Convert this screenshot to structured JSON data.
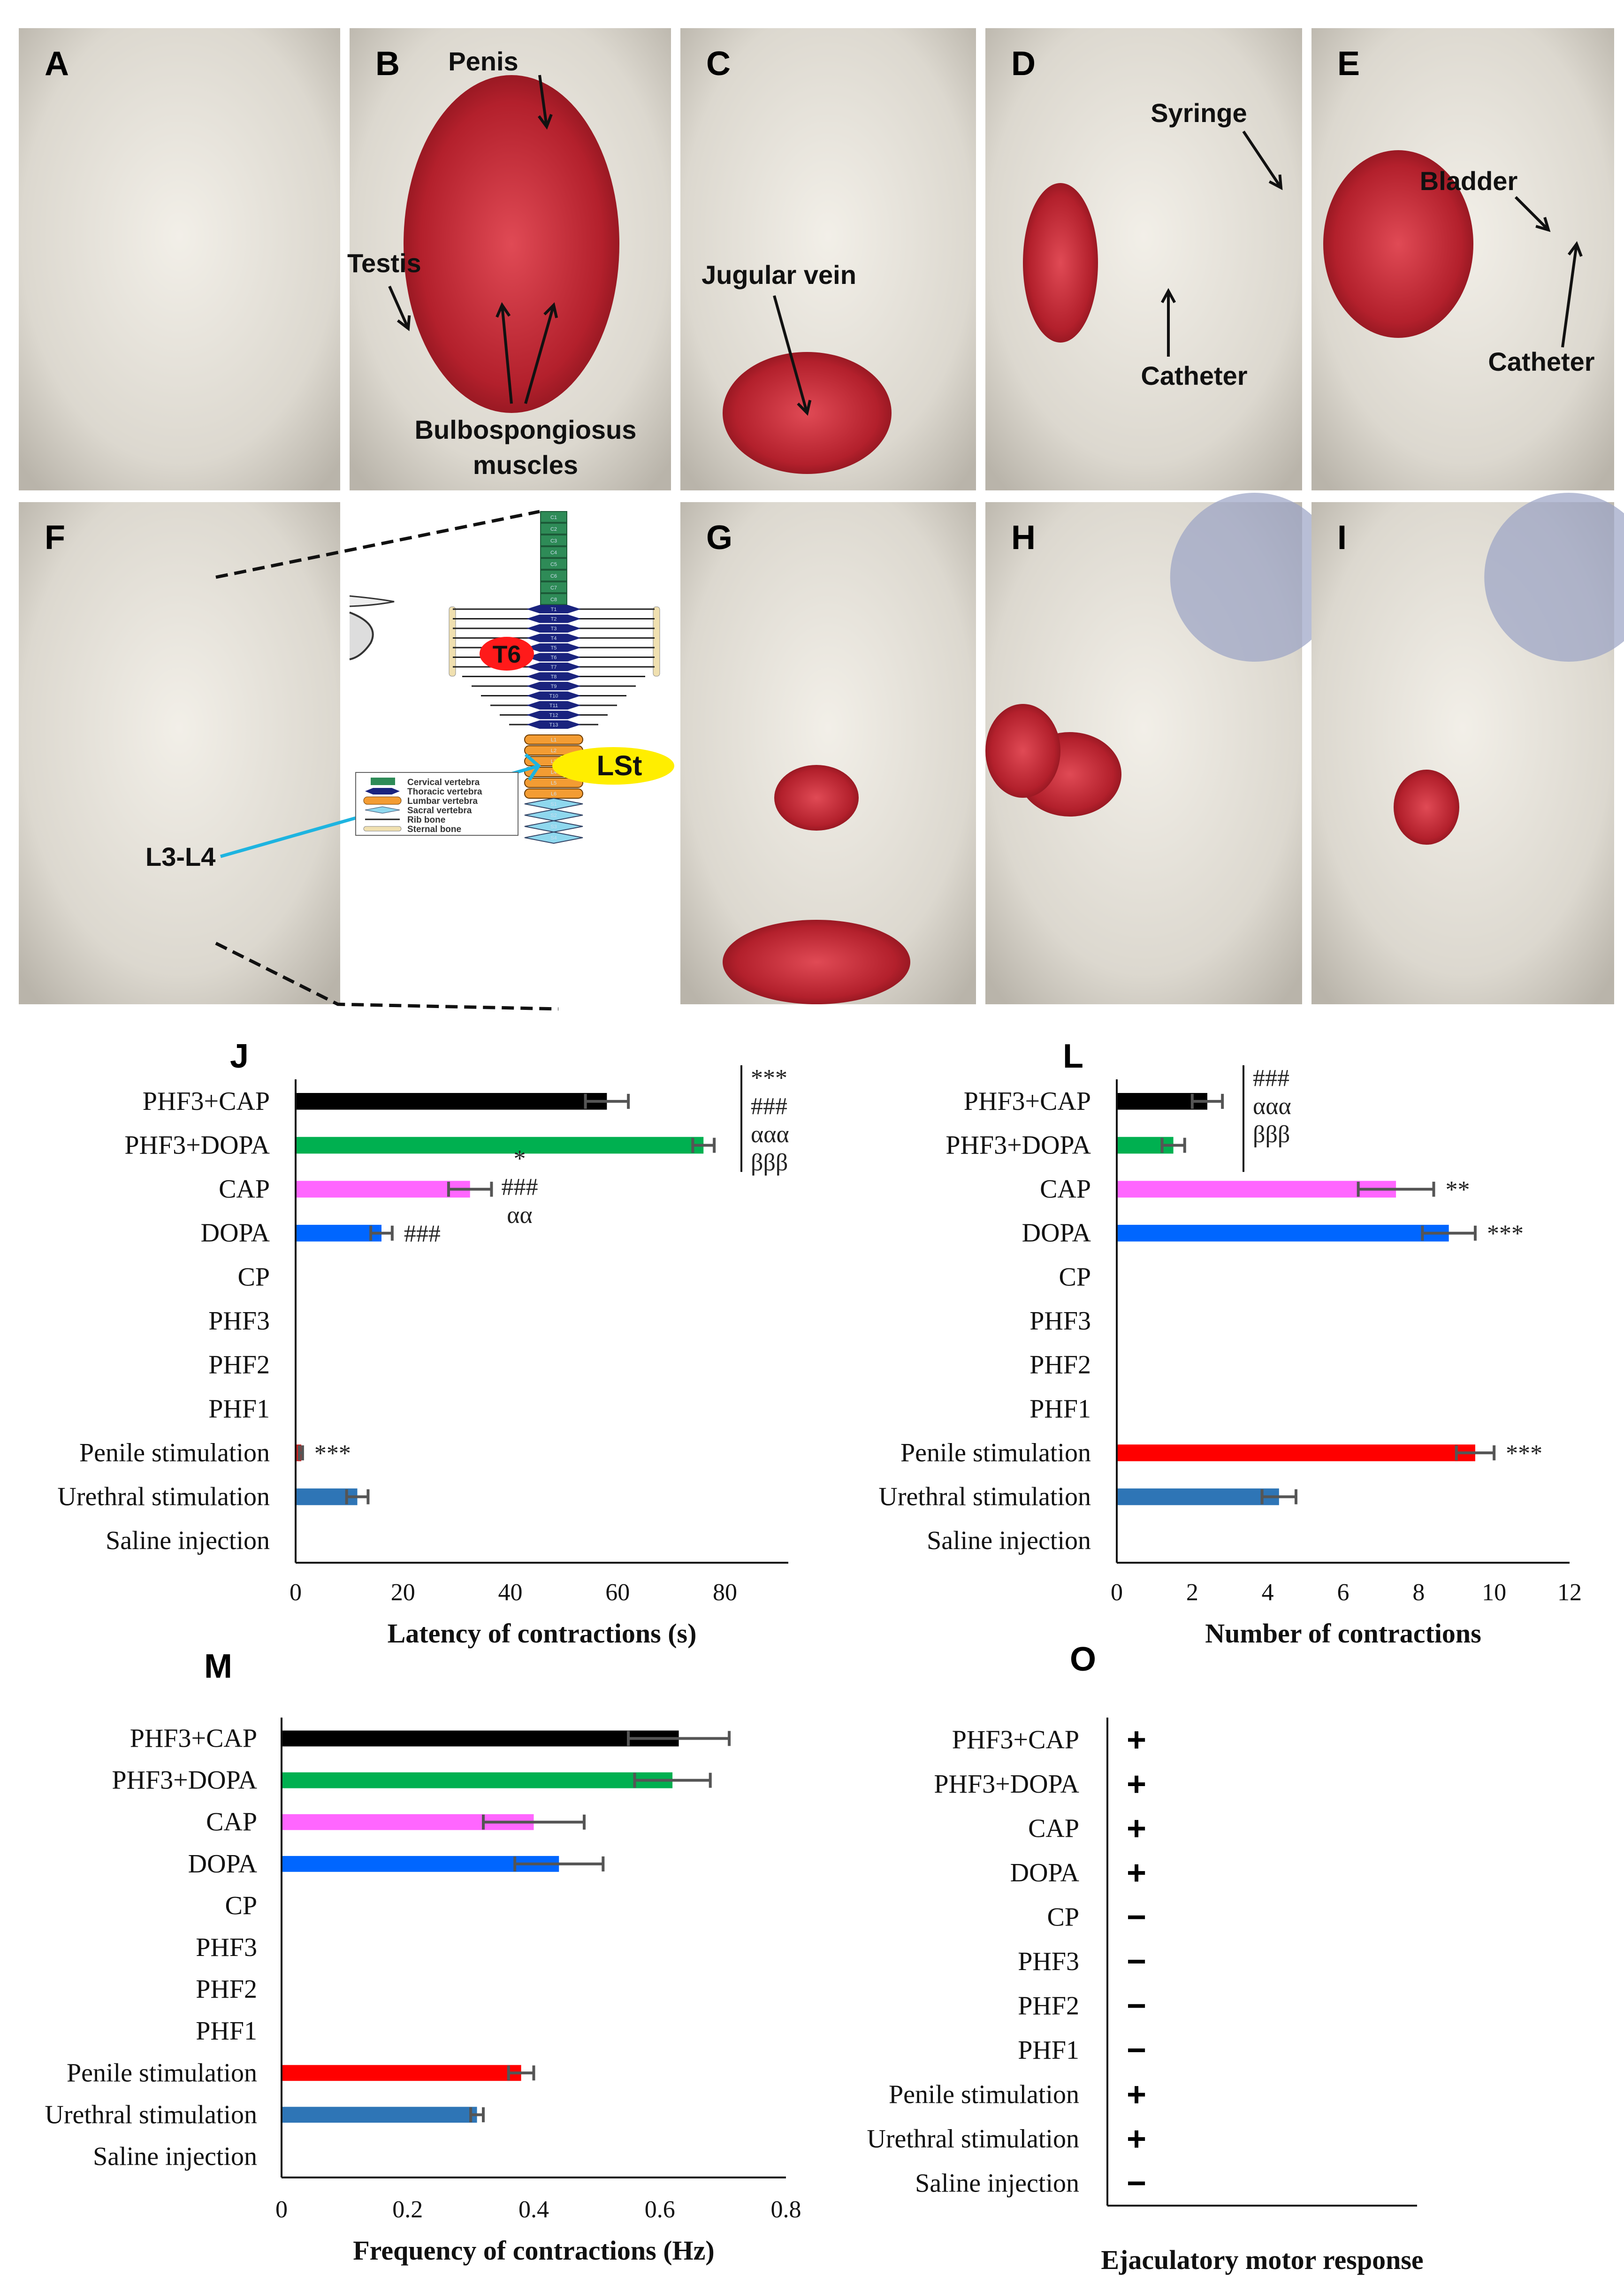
{
  "photo_panels": [
    {
      "id": "A",
      "annotations": []
    },
    {
      "id": "B",
      "annotations": [
        "Penis",
        "Testis",
        "Bulbospongiosus",
        "muscles"
      ]
    },
    {
      "id": "C",
      "annotations": [
        "Jugular vein"
      ]
    },
    {
      "id": "D",
      "annotations": [
        "Syringe",
        "Catheter"
      ]
    },
    {
      "id": "E",
      "annotations": [
        "Bladder",
        "Catheter"
      ]
    },
    {
      "id": "F",
      "annotations": [
        "L3-L4"
      ]
    },
    {
      "id": "G",
      "annotations": []
    },
    {
      "id": "H",
      "annotations": []
    },
    {
      "id": "I",
      "annotations": []
    }
  ],
  "spine_diagram": {
    "cervical": [
      "C1",
      "C2",
      "C3",
      "C4",
      "C5",
      "C6",
      "C7",
      "C8"
    ],
    "thoracic": [
      "T1",
      "T2",
      "T3",
      "T4",
      "T5",
      "T6",
      "T7",
      "T8",
      "T9",
      "T10",
      "T11",
      "T12",
      "T13"
    ],
    "lumbar": [
      "L1",
      "L2",
      "L3",
      "L4",
      "L5",
      "L6"
    ],
    "sacral": [
      "S1",
      "S2",
      "S3",
      "S4"
    ],
    "highlight_t6": "T6",
    "highlight_lst": "LSt",
    "legend": [
      "Cervical vertebra",
      "Thoracic vertebra",
      "Lumbar vertebra",
      "Sacral vertebra",
      "Rib bone",
      "Sternal bone"
    ],
    "colors": {
      "cervical": "#2e8b57",
      "thoracic": "#1a237e",
      "lumbar": "#f39c33",
      "sacral": "#8fd8ee",
      "t6": "#ff1a1a",
      "lst": "#ffee00",
      "arrow": "#1eb4e0"
    }
  },
  "chart_data": [
    {
      "panel": "J",
      "type": "bar",
      "orientation": "horizontal",
      "categories": [
        "PHF3+CAP",
        "PHF3+DOPA",
        "CAP",
        "DOPA",
        "CP",
        "PHF3",
        "PHF2",
        "PHF1",
        "Penile stimulation",
        "Urethral stimulation",
        "Saline injection"
      ],
      "values": [
        58,
        76,
        32.5,
        16,
        0,
        0,
        0,
        0,
        1,
        11.5,
        0
      ],
      "errors": [
        4,
        2,
        4,
        2,
        0,
        0,
        0,
        0,
        0.3,
        2,
        0
      ],
      "colors": [
        "#000000",
        "#00b050",
        "#ff66ff",
        "#0066ff",
        "#888888",
        "#888888",
        "#888888",
        "#888888",
        "#cc2222",
        "#2e75b6",
        "#888888"
      ],
      "annotations": [
        {
          "category": "PHF3+CAP",
          "lines": [
            "***",
            "###",
            "ααα",
            "βββ"
          ],
          "bracket": true
        },
        {
          "category": "CAP",
          "lines": [
            "*",
            "###",
            "αα"
          ]
        },
        {
          "category": "DOPA",
          "lines": [
            "###"
          ]
        },
        {
          "category": "Penile stimulation",
          "lines": [
            "***"
          ]
        }
      ],
      "xlabel": "Latency of contractions (s)",
      "xlim": [
        0,
        90
      ],
      "xticks": [
        0,
        20,
        40,
        60,
        80
      ],
      "grid": false
    },
    {
      "panel": "L",
      "type": "bar",
      "orientation": "horizontal",
      "categories": [
        "PHF3+CAP",
        "PHF3+DOPA",
        "CAP",
        "DOPA",
        "CP",
        "PHF3",
        "PHF2",
        "PHF1",
        "Penile stimulation",
        "Urethral stimulation",
        "Saline injection"
      ],
      "values": [
        2.4,
        1.5,
        7.4,
        8.8,
        0,
        0,
        0,
        0,
        9.5,
        4.3,
        0
      ],
      "errors": [
        0.4,
        0.3,
        1.0,
        0.7,
        0,
        0,
        0,
        0,
        0.5,
        0.45,
        0
      ],
      "colors": [
        "#000000",
        "#00b050",
        "#ff66ff",
        "#0066ff",
        "#888888",
        "#888888",
        "#888888",
        "#888888",
        "#ff0000",
        "#2e75b6",
        "#888888"
      ],
      "annotations": [
        {
          "category": "PHF3+CAP",
          "lines": [
            "###",
            "ααα",
            "βββ"
          ],
          "bracket": true
        },
        {
          "category": "CAP",
          "lines": [
            "**"
          ]
        },
        {
          "category": "DOPA",
          "lines": [
            "***"
          ]
        },
        {
          "category": "Penile stimulation",
          "lines": [
            "***"
          ]
        }
      ],
      "xlabel": "Number of contractions",
      "xlim": [
        0,
        12
      ],
      "xticks": [
        0,
        2,
        4,
        6,
        8,
        10,
        12
      ],
      "grid": false
    },
    {
      "panel": "M",
      "type": "bar",
      "orientation": "horizontal",
      "categories": [
        "PHF3+CAP",
        "PHF3+DOPA",
        "CAP",
        "DOPA",
        "CP",
        "PHF3",
        "PHF2",
        "PHF1",
        "Penile stimulation",
        "Urethral stimulation",
        "Saline injection"
      ],
      "values": [
        0.63,
        0.62,
        0.4,
        0.44,
        0,
        0,
        0,
        0,
        0.38,
        0.31,
        0
      ],
      "errors": [
        0.08,
        0.06,
        0.08,
        0.07,
        0,
        0,
        0,
        0,
        0.02,
        0.01,
        0
      ],
      "colors": [
        "#000000",
        "#00b050",
        "#ff66ff",
        "#0066ff",
        "#888888",
        "#888888",
        "#888888",
        "#888888",
        "#ff0000",
        "#2e75b6",
        "#888888"
      ],
      "annotations": [],
      "xlabel": "Frequency of contractions (Hz)",
      "xlim": [
        0,
        0.8
      ],
      "xticks": [
        "0",
        "0.2",
        "0.4",
        "0.6",
        "0.8"
      ],
      "grid": false
    },
    {
      "panel": "O",
      "type": "table",
      "categories": [
        "PHF3+CAP",
        "PHF3+DOPA",
        "CAP",
        "DOPA",
        "CP",
        "PHF3",
        "PHF2",
        "PHF1",
        "Penile stimulation",
        "Urethral stimulation",
        "Saline injection"
      ],
      "values": [
        "+",
        "+",
        "+",
        "+",
        "−",
        "−",
        "−",
        "−",
        "+",
        "+",
        "−"
      ],
      "xlabel": "Ejaculatory motor response"
    }
  ]
}
